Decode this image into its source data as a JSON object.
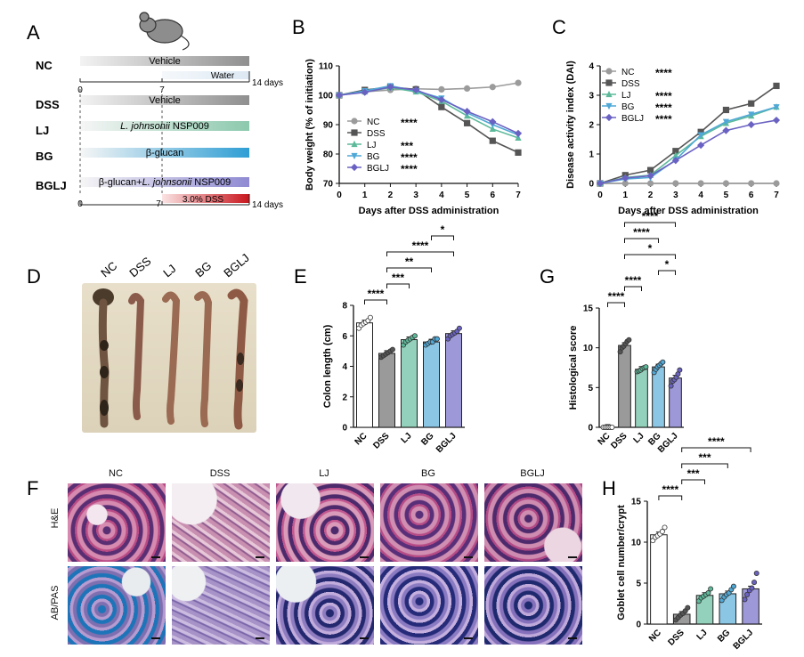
{
  "panel_letters": {
    "A": "A",
    "B": "B",
    "C": "C",
    "D": "D",
    "E": "E",
    "F": "F",
    "G": "G",
    "H": "H"
  },
  "colors": {
    "NC": "#9b9b9b",
    "DSS": "#555555",
    "LJ": "#5cb99a",
    "BG": "#4fa8d6",
    "BGLJ": "#6a62c2",
    "red": "#c8161d"
  },
  "panel_A": {
    "groups": [
      {
        "name": "NC",
        "bar_text": "Vehicle",
        "sub_text": "Water",
        "end_label": "14 days"
      },
      {
        "name": "DSS",
        "bar_text": "Vehicle"
      },
      {
        "name": "LJ",
        "bar_text_italic": "L. johnsonii",
        "bar_text_rest": " NSP009"
      },
      {
        "name": "BG",
        "bar_text": "β-glucan"
      },
      {
        "name": "BGLJ",
        "bar_text_pre": "β-glucan+",
        "bar_text_italic": "L. johnsonii",
        "bar_text_rest": " NSP009"
      }
    ],
    "axis_ticks": [
      "0",
      "7"
    ],
    "dss_label": "3.0% DSS",
    "end_label": "14 days"
  },
  "chart_data": [
    {
      "id": "B",
      "type": "line",
      "xlabel": "Days after DSS administration",
      "ylabel": "Body weight (% of initiation)",
      "x": [
        0,
        1,
        2,
        3,
        4,
        5,
        6,
        7
      ],
      "xlim": [
        0,
        7
      ],
      "ylim": [
        70,
        110
      ],
      "yticks": [
        70,
        80,
        90,
        100,
        110
      ],
      "legend": "lower-left",
      "series": [
        {
          "name": "NC",
          "sig": "****",
          "values": [
            100,
            101.2,
            101.8,
            102.2,
            102,
            102.3,
            102.8,
            104.2
          ]
        },
        {
          "name": "DSS",
          "sig": "",
          "values": [
            100,
            101.8,
            102.8,
            102,
            96,
            90.5,
            84.5,
            80.5
          ]
        },
        {
          "name": "LJ",
          "sig": "***",
          "values": [
            100,
            101.2,
            102.6,
            101.2,
            98,
            93,
            88.5,
            85.5
          ]
        },
        {
          "name": "BG",
          "sig": "****",
          "values": [
            100,
            101.5,
            103.2,
            101.5,
            99,
            94,
            90,
            86.5
          ]
        },
        {
          "name": "BGLJ",
          "sig": "****",
          "values": [
            100,
            101,
            102.8,
            101.8,
            98.5,
            94.5,
            91,
            87
          ]
        }
      ]
    },
    {
      "id": "C",
      "type": "line",
      "xlabel": "Days after DSS administration",
      "ylabel": "Disease activity index (DAI)",
      "x": [
        0,
        1,
        2,
        3,
        4,
        5,
        6,
        7
      ],
      "xlim": [
        0,
        7
      ],
      "ylim": [
        0,
        4
      ],
      "yticks": [
        0,
        1,
        2,
        3,
        4
      ],
      "legend": "top-left",
      "series": [
        {
          "name": "NC",
          "sig": "****",
          "values": [
            0,
            0,
            0,
            0,
            0,
            0,
            0,
            0
          ]
        },
        {
          "name": "DSS",
          "sig": "",
          "values": [
            0,
            0.28,
            0.45,
            1.1,
            1.75,
            2.5,
            2.72,
            3.32
          ]
        },
        {
          "name": "LJ",
          "sig": "****",
          "values": [
            0,
            0.2,
            0.28,
            0.95,
            1.6,
            2.05,
            2.3,
            2.6
          ]
        },
        {
          "name": "BG",
          "sig": "****",
          "values": [
            0,
            0.15,
            0.2,
            0.8,
            1.65,
            2.1,
            2.35,
            2.6
          ]
        },
        {
          "name": "BGLJ",
          "sig": "****",
          "values": [
            0,
            0.18,
            0.26,
            0.78,
            1.3,
            1.8,
            2.0,
            2.15
          ]
        }
      ]
    },
    {
      "id": "E",
      "type": "bar",
      "ylabel": "Colon length (cm)",
      "categories": [
        "NC",
        "DSS",
        "LJ",
        "BG",
        "BGLJ"
      ],
      "values": [
        6.85,
        4.85,
        5.75,
        5.6,
        6.15
      ],
      "ylim": [
        0,
        8
      ],
      "yticks": [
        0,
        2,
        4,
        6,
        8
      ],
      "points": [
        [
          6.5,
          6.7,
          6.8,
          6.9,
          7.0,
          7.2
        ],
        [
          4.6,
          4.7,
          4.8,
          4.9,
          5.0,
          5.1
        ],
        [
          5.4,
          5.6,
          5.7,
          5.8,
          5.9,
          6.0
        ],
        [
          5.4,
          5.5,
          5.6,
          5.6,
          5.8,
          5.8
        ],
        [
          5.8,
          6.0,
          6.1,
          6.2,
          6.3,
          6.5
        ]
      ],
      "comparisons": [
        {
          "from": 0,
          "to": 1,
          "label": "****"
        },
        {
          "from": 1,
          "to": 2,
          "label": "***"
        },
        {
          "from": 1,
          "to": 3,
          "label": "**"
        },
        {
          "from": 1,
          "to": 4,
          "label": "****"
        },
        {
          "from": 3,
          "to": 4,
          "label": "*"
        }
      ]
    },
    {
      "id": "G",
      "type": "bar",
      "ylabel": "Histological score",
      "categories": [
        "NC",
        "DSS",
        "LJ",
        "BG",
        "BGLJ"
      ],
      "values": [
        0,
        10.3,
        7.3,
        7.6,
        6.2
      ],
      "ylim": [
        0,
        15
      ],
      "yticks": [
        0,
        5,
        10,
        15
      ],
      "points": [
        [
          0,
          0,
          0,
          0,
          0,
          0
        ],
        [
          9.5,
          10,
          10.2,
          10.5,
          10.8,
          11
        ],
        [
          7,
          7.1,
          7.2,
          7.4,
          7.5,
          7.6
        ],
        [
          6.9,
          7.3,
          7.6,
          7.8,
          8,
          8.2
        ],
        [
          5.2,
          5.8,
          6,
          6.3,
          6.7,
          7.2
        ]
      ],
      "comparisons": [
        {
          "from": 0,
          "to": 1,
          "label": "****"
        },
        {
          "from": 1,
          "to": 2,
          "label": "****"
        },
        {
          "from": 3,
          "to": 4,
          "label": "*"
        },
        {
          "from": 1,
          "to": 4,
          "label": "*"
        },
        {
          "from": 1,
          "to": 3,
          "label": "****"
        },
        {
          "from": 1,
          "to": 4,
          "label": "****"
        }
      ]
    },
    {
      "id": "H",
      "type": "bar",
      "ylabel": "Goblet cell number/crypt",
      "categories": [
        "NC",
        "DSS",
        "LJ",
        "BG",
        "BGLJ"
      ],
      "values": [
        10.9,
        1.2,
        3.5,
        3.7,
        4.3
      ],
      "ylim": [
        0,
        15
      ],
      "yticks": [
        0,
        5,
        10,
        15
      ],
      "points": [
        [
          10.2,
          10.6,
          10.8,
          11,
          11.3,
          11.8
        ],
        [
          0.5,
          0.8,
          1.1,
          1.3,
          1.6,
          2.0
        ],
        [
          2.8,
          3.2,
          3.4,
          3.6,
          3.8,
          4.3
        ],
        [
          2.9,
          3.3,
          3.6,
          3.8,
          4.2,
          4.6
        ],
        [
          3.0,
          3.6,
          4.1,
          4.4,
          5.1,
          6.2
        ]
      ],
      "comparisons": [
        {
          "from": 0,
          "to": 1,
          "label": "****"
        },
        {
          "from": 1,
          "to": 2,
          "label": "***"
        },
        {
          "from": 1,
          "to": 3,
          "label": "***"
        },
        {
          "from": 1,
          "to": 4,
          "label": "****"
        }
      ]
    }
  ],
  "panel_D": {
    "labels": [
      "NC",
      "DSS",
      "LJ",
      "BG",
      "BGLJ"
    ]
  },
  "panel_F": {
    "columns": [
      "NC",
      "DSS",
      "LJ",
      "BG",
      "BGLJ"
    ],
    "rows": [
      "H&E",
      "AB/PAS"
    ]
  }
}
